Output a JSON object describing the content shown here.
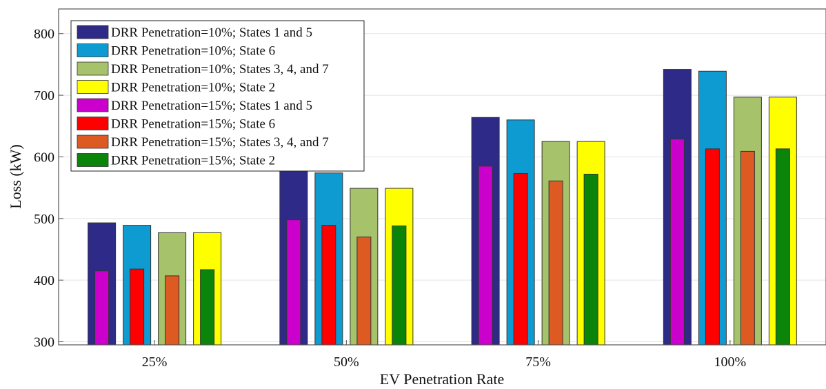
{
  "chart_data": {
    "type": "bar",
    "xlabel": "EV Penetration Rate",
    "ylabel": "Loss (kW)",
    "ylim": [
      295,
      840
    ],
    "yticks": [
      300,
      400,
      500,
      600,
      700,
      800
    ],
    "grid": "horizontal",
    "legend_position": "top-left",
    "categories": [
      "25%",
      "50%",
      "75%",
      "100%"
    ],
    "back_series": [
      {
        "name": "DRR Penetration=10%; States 1 and 5",
        "color": "#2e2a87",
        "values": [
          493,
          579,
          664,
          742
        ]
      },
      {
        "name": "DRR Penetration=10%; State 6",
        "color": "#0e9bd2",
        "values": [
          489,
          574,
          660,
          739
        ]
      },
      {
        "name": "DRR Penetration=10%; States 3, 4, and 7",
        "color": "#a6c26a",
        "values": [
          477,
          549,
          625,
          697
        ]
      },
      {
        "name": "DRR Penetration=10%; State 2",
        "color": "#ffff00",
        "values": [
          477,
          549,
          625,
          697
        ]
      }
    ],
    "front_series": [
      {
        "name": "DRR Penetration=15%; States 1 and 5",
        "color": "#cc00cc",
        "values": [
          415,
          498,
          585,
          629
        ]
      },
      {
        "name": "DRR Penetration=15%; State 6",
        "color": "#ff0000",
        "values": [
          418,
          489,
          573,
          613
        ]
      },
      {
        "name": "DRR Penetration=15%; States 3, 4, and 7",
        "color": "#dd5a22",
        "values": [
          407,
          470,
          561,
          609
        ]
      },
      {
        "name": "DRR Penetration=15%; State 2",
        "color": "#0a850a",
        "values": [
          417,
          488,
          572,
          613
        ]
      }
    ]
  }
}
